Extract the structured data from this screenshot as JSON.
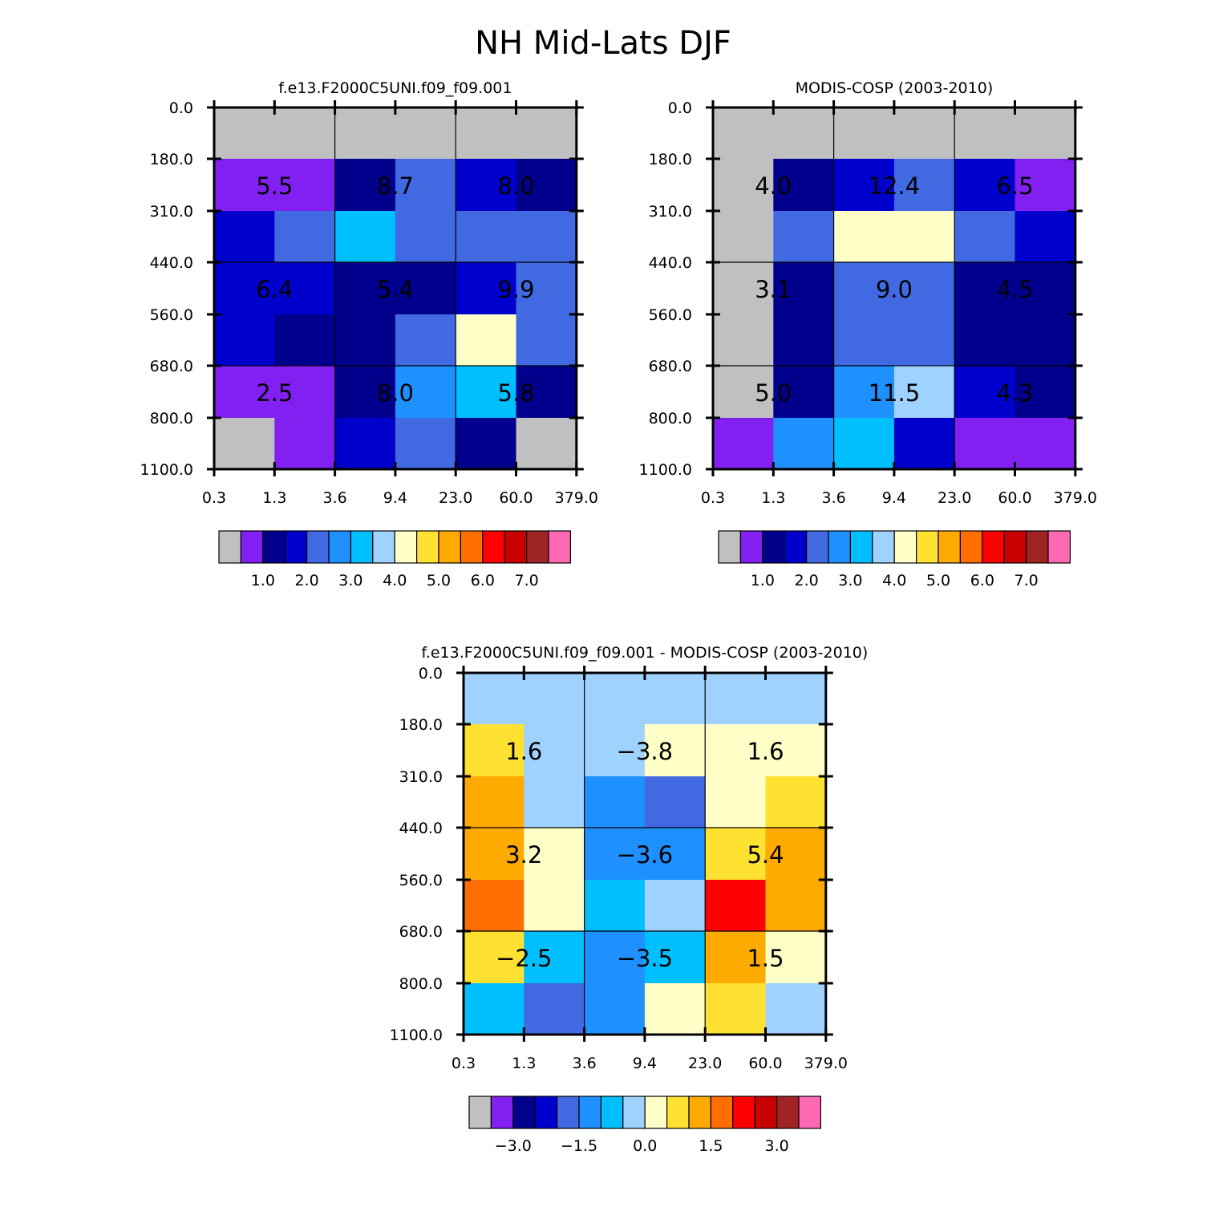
{
  "figure": {
    "title": "NH Mid-Lats DJF"
  },
  "chart_data": [
    {
      "type": "heatmap",
      "id": "model",
      "title": "f.e13.F2000C5UNI.f09_f09.001",
      "x_ticks": [
        "0.3",
        "1.3",
        "3.6",
        "9.4",
        "23.0",
        "60.0",
        "379.0"
      ],
      "y_ticks": [
        "0.0",
        "180.0",
        "310.0",
        "440.0",
        "560.0",
        "680.0",
        "800.0",
        "1100.0"
      ],
      "cell_color_index": [
        [
          0,
          0,
          0,
          0,
          0,
          0
        ],
        [
          1,
          1,
          2,
          4,
          3,
          2
        ],
        [
          3,
          4,
          6,
          4,
          4,
          4
        ],
        [
          3,
          3,
          2,
          2,
          3,
          4
        ],
        [
          3,
          2,
          2,
          4,
          8,
          4
        ],
        [
          1,
          1,
          2,
          5,
          6,
          2
        ],
        [
          0,
          1,
          3,
          4,
          2,
          0
        ]
      ],
      "box_labels": [
        [
          "5.5",
          "8.7",
          "8.0"
        ],
        [
          "6.4",
          "5.4",
          "9.9"
        ],
        [
          "2.5",
          "8.0",
          "5.8"
        ]
      ],
      "colorbar": {
        "colors": [
          "#C0C0C0",
          "#8120F0",
          "#00008C",
          "#0000CD",
          "#4169E1",
          "#1E90FF",
          "#00BFFF",
          "#A0D2FF",
          "#FFFFC8",
          "#FFE132",
          "#FFAA00",
          "#FF6E00",
          "#FF0000",
          "#C80000",
          "#A02323",
          "#FF69B4"
        ],
        "labels": [
          "1.0",
          "2.0",
          "3.0",
          "4.0",
          "5.0",
          "6.0",
          "7.0"
        ]
      }
    },
    {
      "type": "heatmap",
      "id": "obs",
      "title": "MODIS-COSP (2003-2010)",
      "x_ticks": [
        "0.3",
        "1.3",
        "3.6",
        "9.4",
        "23.0",
        "60.0",
        "379.0"
      ],
      "y_ticks": [
        "0.0",
        "180.0",
        "310.0",
        "440.0",
        "560.0",
        "680.0",
        "800.0",
        "1100.0"
      ],
      "cell_color_index": [
        [
          0,
          0,
          0,
          0,
          0,
          0
        ],
        [
          0,
          2,
          3,
          4,
          3,
          1
        ],
        [
          0,
          4,
          8,
          8,
          4,
          3
        ],
        [
          0,
          2,
          4,
          4,
          2,
          2
        ],
        [
          0,
          2,
          4,
          4,
          2,
          2
        ],
        [
          0,
          2,
          5,
          7,
          3,
          2
        ],
        [
          1,
          5,
          6,
          3,
          1,
          1
        ]
      ],
      "box_labels": [
        [
          "4.0",
          "12.4",
          "6.5"
        ],
        [
          "3.1",
          "9.0",
          "4.5"
        ],
        [
          "5.0",
          "11.5",
          "4.3"
        ]
      ],
      "colorbar": {
        "colors": [
          "#C0C0C0",
          "#8120F0",
          "#00008C",
          "#0000CD",
          "#4169E1",
          "#1E90FF",
          "#00BFFF",
          "#A0D2FF",
          "#FFFFC8",
          "#FFE132",
          "#FFAA00",
          "#FF6E00",
          "#FF0000",
          "#C80000",
          "#A02323",
          "#FF69B4"
        ],
        "labels": [
          "1.0",
          "2.0",
          "3.0",
          "4.0",
          "5.0",
          "6.0",
          "7.0"
        ]
      }
    },
    {
      "type": "heatmap",
      "id": "diff",
      "title": "f.e13.F2000C5UNI.f09_f09.001 - MODIS-COSP (2003-2010)",
      "x_ticks": [
        "0.3",
        "1.3",
        "3.6",
        "9.4",
        "23.0",
        "60.0",
        "379.0"
      ],
      "y_ticks": [
        "0.0",
        "180.0",
        "310.0",
        "440.0",
        "560.0",
        "680.0",
        "800.0",
        "1100.0"
      ],
      "cell_color_index": [
        [
          7,
          7,
          7,
          7,
          7,
          7
        ],
        [
          9,
          7,
          7,
          8,
          8,
          8
        ],
        [
          10,
          7,
          5,
          4,
          8,
          9
        ],
        [
          10,
          8,
          5,
          5,
          9,
          10
        ],
        [
          11,
          8,
          6,
          7,
          12,
          10
        ],
        [
          9,
          6,
          5,
          6,
          10,
          8
        ],
        [
          6,
          4,
          5,
          8,
          9,
          7
        ]
      ],
      "box_labels": [
        [
          "1.6",
          "-3.8",
          "1.6"
        ],
        [
          "3.2",
          "-3.6",
          "5.4"
        ],
        [
          "-2.5",
          "-3.5",
          "1.5"
        ]
      ],
      "colorbar": {
        "colors": [
          "#C0C0C0",
          "#8120F0",
          "#00008C",
          "#0000CD",
          "#4169E1",
          "#1E90FF",
          "#00BFFF",
          "#A0D2FF",
          "#FFFFC8",
          "#FFE132",
          "#FFAA00",
          "#FF6E00",
          "#FF0000",
          "#C80000",
          "#A02323",
          "#FF69B4"
        ],
        "labels": [
          "-3.0",
          "-1.5",
          "0.0",
          "1.5",
          "3.0"
        ]
      }
    }
  ]
}
